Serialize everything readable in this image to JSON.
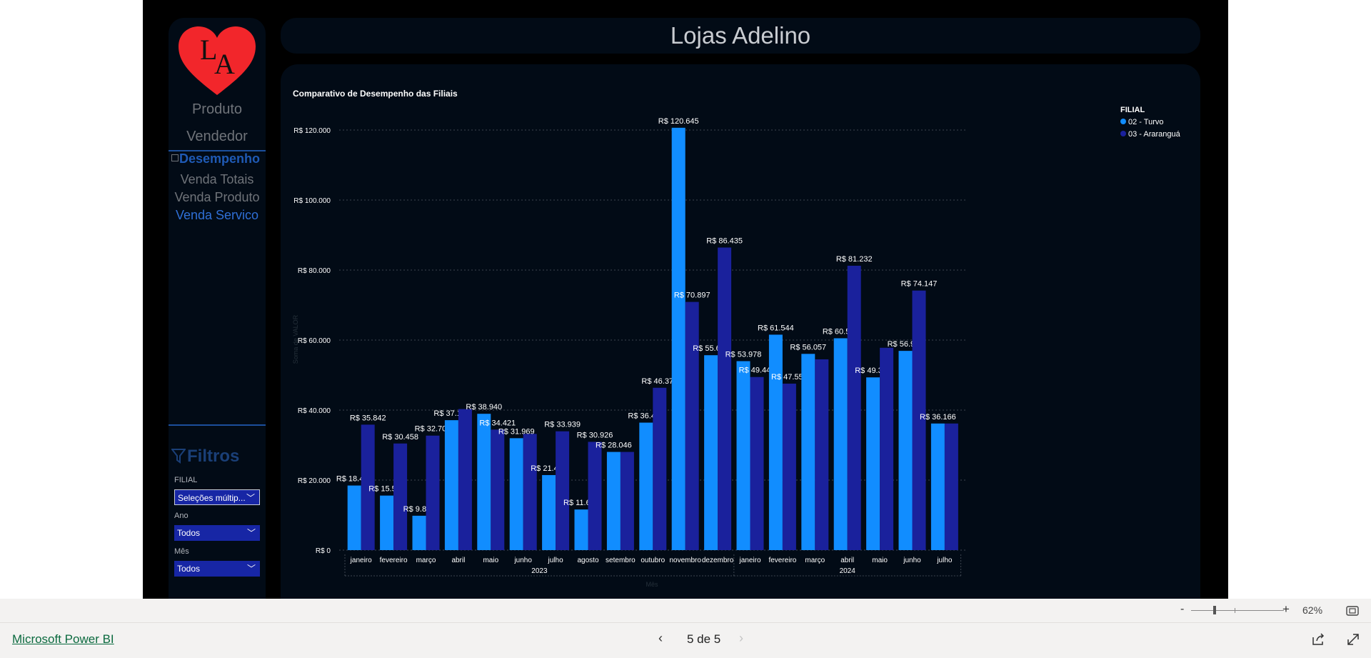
{
  "title": "Lojas Adelino",
  "logo": {
    "letters": [
      "L",
      "A"
    ],
    "color": "#f2262b"
  },
  "nav": {
    "produto": "Produto",
    "vendedor": "Vendedor",
    "desempenho": "Desempenho",
    "subitems": [
      "Venda Totais",
      "Venda Produto",
      "Venda Servico"
    ]
  },
  "filters": {
    "title": "Filtros",
    "filial_label": "FILIAL",
    "filial_value": "Seleções múltip...",
    "ano_label": "Ano",
    "ano_value": "Todos",
    "mes_label": "Mês",
    "mes_value": "Todos"
  },
  "chart_data": {
    "type": "bar",
    "title": "Comparativo de Desempenho das Filiais",
    "ylabel": "Soma de VALOR",
    "xlabel": "Mês",
    "ylim": [
      0,
      120000
    ],
    "yticks": [
      "R$ 0",
      "R$ 20.000",
      "R$ 40.000",
      "R$ 60.000",
      "R$ 80.000",
      "R$ 100.000",
      "R$ 120.000"
    ],
    "grid": true,
    "legend_title": "FILIAL",
    "legend_position": "top-right",
    "categories": [
      "janeiro",
      "fevereiro",
      "março",
      "abril",
      "maio",
      "junho",
      "julho",
      "agosto",
      "setembro",
      "outubro",
      "novembro",
      "dezembro",
      "janeiro",
      "fevereiro",
      "março",
      "abril",
      "maio",
      "junho",
      "julho"
    ],
    "year_groups": [
      {
        "label": "2023",
        "count": 12
      },
      {
        "label": "2024",
        "count": 7
      }
    ],
    "series": [
      {
        "name": "02 - Turvo",
        "color": "#118dff",
        "values": [
          18451,
          15579,
          9819,
          37117,
          38940,
          31969,
          21437,
          11604,
          28046,
          36418,
          120645,
          55674,
          53978,
          61544,
          56057,
          60516,
          49344,
          56913,
          36166
        ],
        "labels": [
          "R$ 18.451",
          "R$ 15.579",
          "R$ 9.819",
          "R$ 37.117",
          "R$ 38.940",
          "R$ 31.969",
          "R$ 21.437",
          "R$ 11.604",
          "R$ 28.046",
          "R$ 36.418",
          "R$ 120.645",
          "R$ 55.674",
          "R$ 53.978",
          "R$ 61.544",
          "R$ 56.057",
          "R$ 60.516",
          "R$ 49.344",
          "R$ 56.913",
          "R$ 36.166"
        ]
      },
      {
        "name": "03 - Araranguá",
        "color": "#1a219c",
        "values": [
          35842,
          30458,
          32705,
          40300,
          34421,
          33200,
          33939,
          30926,
          28046,
          46376,
          70897,
          86435,
          49449,
          47557,
          54500,
          81232,
          57800,
          74147,
          36166
        ],
        "labels": [
          "R$ 35.842",
          "R$ 30.458",
          "R$ 32.705",
          "",
          "R$ 34.421",
          "",
          "R$ 33.939",
          "R$ 30.926",
          "",
          "R$ 46.376",
          "R$ 70.897",
          "R$ 86.435",
          "R$ 49.449",
          "R$ 47.557",
          "",
          "R$ 81.232",
          "",
          "R$ 74.147",
          ""
        ]
      }
    ]
  },
  "footer": {
    "zoom_minus": "-",
    "zoom_plus": "+",
    "zoom": "62%",
    "brand": "Microsoft Power BI",
    "prev": "‹",
    "next": "›",
    "page": "5 de 5"
  }
}
